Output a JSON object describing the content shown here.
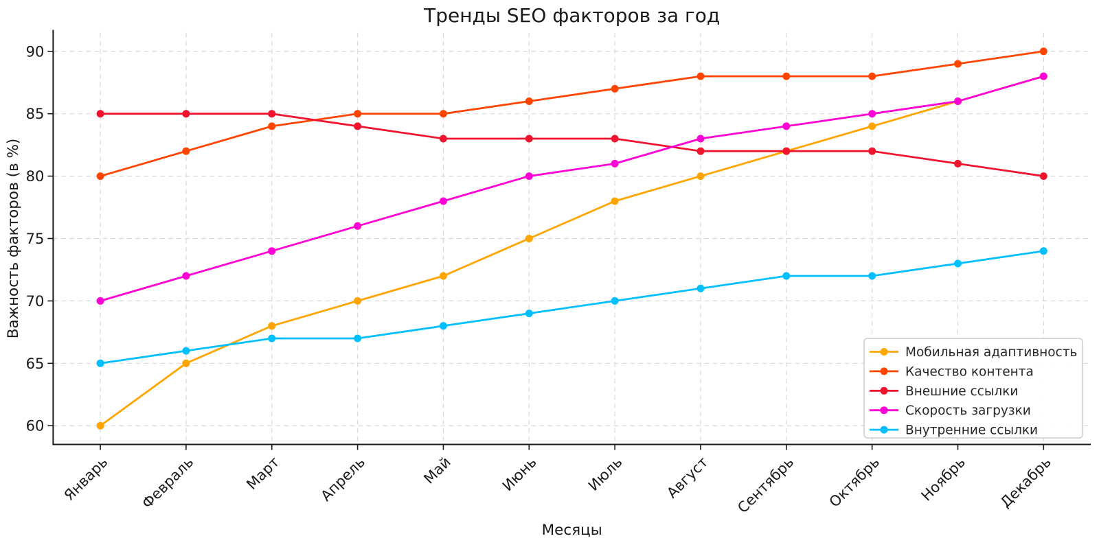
{
  "chart_data": {
    "type": "line",
    "title": "Тренды SEO факторов за год",
    "xlabel": "Месяцы",
    "ylabel": "Важность факторов (в %)",
    "categories": [
      "Январь",
      "Февраль",
      "Март",
      "Апрель",
      "Май",
      "Июнь",
      "Июль",
      "Август",
      "Сентябрь",
      "Октябрь",
      "Ноябрь",
      "Декабрь"
    ],
    "series": [
      {
        "name": "Мобильная адаптивность",
        "color": "#FFA500",
        "values": [
          60,
          65,
          68,
          70,
          72,
          75,
          78,
          80,
          82,
          84,
          86,
          88
        ]
      },
      {
        "name": "Качество контента",
        "color": "#FF4500",
        "values": [
          80,
          82,
          84,
          85,
          85,
          86,
          87,
          88,
          88,
          88,
          89,
          90
        ]
      },
      {
        "name": "Внешние ссылки",
        "color": "#F0142F",
        "values": [
          85,
          85,
          85,
          84,
          83,
          83,
          83,
          82,
          82,
          82,
          81,
          80
        ]
      },
      {
        "name": "Скорость загрузки",
        "color": "#FF00D5",
        "values": [
          70,
          72,
          74,
          76,
          78,
          80,
          81,
          83,
          84,
          85,
          86,
          88
        ]
      },
      {
        "name": "Внутренние ссылки",
        "color": "#00BFFF",
        "values": [
          65,
          66,
          67,
          67,
          68,
          69,
          70,
          71,
          72,
          72,
          73,
          74
        ]
      }
    ],
    "yticks": [
      60,
      65,
      70,
      75,
      80,
      85,
      90
    ],
    "ylim": [
      58.5,
      91.5
    ],
    "x_tick_rotation": 45,
    "grid": true,
    "grid_style": "dashed",
    "legend_position": "lower right",
    "style": {
      "text_color": "#1a1a1a",
      "grid_color": "#d9d9d9",
      "spine_color": "#1a1a1a",
      "legend_border_color": "#cccccc",
      "background": "#ffffff"
    }
  }
}
